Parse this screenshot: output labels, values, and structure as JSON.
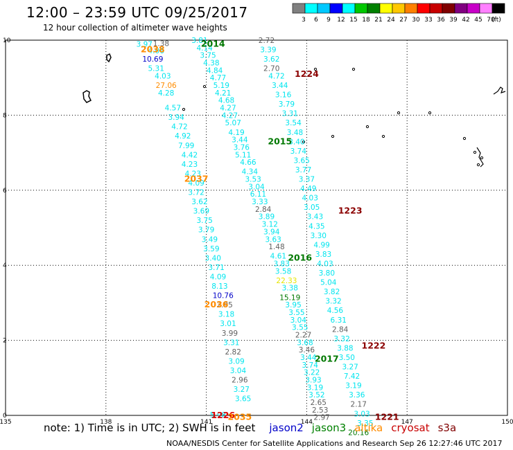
{
  "header": {
    "title": "12:00 – 23:59 UTC 09/25/2017",
    "subtitle": "12 hour collection of altimeter wave heights"
  },
  "legend": {
    "unit": "(ft)",
    "colors": [
      "#808080",
      "#00ffff",
      "#00c8ff",
      "#0000ff",
      "#00ffff",
      "#00c800",
      "#008000",
      "#ffff00",
      "#ffc800",
      "#ff8000",
      "#ff0000",
      "#c80000",
      "#800000",
      "#800080",
      "#c800c8",
      "#ff80ff",
      "#000000"
    ],
    "labels": [
      "3",
      "6",
      "9",
      "12",
      "15",
      "18",
      "21",
      "24",
      "27",
      "30",
      "33",
      "36",
      "39",
      "42",
      "45",
      "70"
    ]
  },
  "axes": {
    "x_ticks": [
      "135",
      "138",
      "141",
      "144",
      "147",
      "150"
    ],
    "y_ticks": [
      "10",
      "8",
      "6",
      "4",
      "2",
      "0"
    ],
    "lon_min": 135,
    "lon_max": 150,
    "lat_min": 0,
    "lat_max": 10
  },
  "footer": {
    "note": "note:  1) Time is in UTC;  2) SWH is in feet",
    "satellites": [
      {
        "name": "jason2",
        "color": "#0000c8"
      },
      {
        "name": "jason3",
        "color": "#008000"
      },
      {
        "name": "altika",
        "color": "#ff8c00"
      },
      {
        "name": "cryosat",
        "color": "#c80000"
      },
      {
        "name": "s3a",
        "color": "#800000"
      }
    ],
    "credit": "NOAA/NESDIS Center for Satellite Applications and Research    Sep 26 12:27:46 UTC 2017"
  },
  "colors": {
    "cyan": "#00e5ee",
    "gray": "#606060",
    "dkgreen": "#007800",
    "orange": "#ff8c00",
    "darkred": "#8b0000",
    "blue": "#0000c8",
    "yellow": "#e6e600",
    "red": "#dd0000"
  },
  "chart_data": {
    "type": "map",
    "pass_labels": [
      {
        "text": "2014",
        "lon": 141.2,
        "lat": 9.9,
        "c": "dkgreen"
      },
      {
        "text": "2038",
        "lon": 139.4,
        "lat": 9.75,
        "c": "orange"
      },
      {
        "text": "1224",
        "lon": 144.0,
        "lat": 9.1,
        "c": "darkred"
      },
      {
        "text": "2015",
        "lon": 143.2,
        "lat": 7.3,
        "c": "dkgreen"
      },
      {
        "text": "2037",
        "lon": 140.7,
        "lat": 6.3,
        "c": "orange"
      },
      {
        "text": "1223",
        "lon": 145.3,
        "lat": 5.45,
        "c": "darkred"
      },
      {
        "text": "2016",
        "lon": 143.8,
        "lat": 4.2,
        "c": "dkgreen"
      },
      {
        "text": "2036",
        "lon": 141.3,
        "lat": 2.95,
        "c": "orange"
      },
      {
        "text": "1222",
        "lon": 146.0,
        "lat": 1.85,
        "c": "darkred"
      },
      {
        "text": "2017",
        "lon": 144.6,
        "lat": 1.5,
        "c": "dkgreen"
      },
      {
        "text": "1226",
        "lon": 141.5,
        "lat": 0.0,
        "c": "red"
      },
      {
        "text": "2035",
        "lon": 142.0,
        "lat": -0.05,
        "c": "orange"
      },
      {
        "text": "1221",
        "lon": 146.4,
        "lat": -0.05,
        "c": "darkred"
      }
    ],
    "tracks": [
      {
        "name": "track-2038-2035",
        "points": [
          [
            "3.97",
            139.15,
            9.9,
            "cyan"
          ],
          [
            "1.38",
            139.65,
            9.92,
            "gray"
          ],
          [
            "4.06",
            139.5,
            9.72,
            "cyan"
          ],
          [
            "10.69",
            139.4,
            9.5,
            "blue"
          ],
          [
            "5.31",
            139.5,
            9.25,
            "cyan"
          ],
          [
            "4.03",
            139.7,
            9.05,
            "cyan"
          ],
          [
            "27.06",
            139.8,
            8.8,
            "orange"
          ],
          [
            "4.28",
            139.8,
            8.6,
            "cyan"
          ],
          [
            "4.57",
            140.0,
            8.2,
            "cyan"
          ],
          [
            "3.94",
            140.1,
            7.95,
            "cyan"
          ],
          [
            "4.72",
            140.2,
            7.7,
            "cyan"
          ],
          [
            "4.92",
            140.3,
            7.45,
            "cyan"
          ],
          [
            "7.99",
            140.4,
            7.2,
            "cyan"
          ],
          [
            "4.42",
            140.5,
            6.95,
            "cyan"
          ],
          [
            "4.23",
            140.5,
            6.7,
            "cyan"
          ],
          [
            "4.23",
            140.6,
            6.45,
            "cyan"
          ],
          [
            "4.09",
            140.7,
            6.2,
            "cyan"
          ],
          [
            "3.72",
            140.7,
            5.95,
            "cyan"
          ],
          [
            "3.62",
            140.8,
            5.7,
            "cyan"
          ],
          [
            "3.69",
            140.85,
            5.45,
            "cyan"
          ],
          [
            "3.75",
            140.95,
            5.2,
            "cyan"
          ],
          [
            "3.79",
            141.0,
            4.95,
            "cyan"
          ],
          [
            "3.49",
            141.1,
            4.7,
            "cyan"
          ],
          [
            "3.59",
            141.15,
            4.45,
            "cyan"
          ],
          [
            "3.40",
            141.2,
            4.2,
            "cyan"
          ],
          [
            "3.71",
            141.3,
            3.95,
            "cyan"
          ],
          [
            "4.09",
            141.35,
            3.7,
            "cyan"
          ],
          [
            "8.13",
            141.4,
            3.45,
            "cyan"
          ],
          [
            "10.76",
            141.5,
            3.2,
            "blue"
          ],
          [
            "2.95",
            141.55,
            2.95,
            "gray"
          ],
          [
            "3.18",
            141.6,
            2.7,
            "cyan"
          ],
          [
            "3.01",
            141.65,
            2.45,
            "cyan"
          ],
          [
            "3.99",
            141.7,
            2.2,
            "gray"
          ],
          [
            "3.31",
            141.75,
            1.95,
            "cyan"
          ],
          [
            "2.82",
            141.8,
            1.7,
            "gray"
          ],
          [
            "3.09",
            141.9,
            1.45,
            "cyan"
          ],
          [
            "3.04",
            141.95,
            1.2,
            "cyan"
          ],
          [
            "2.96",
            142.0,
            0.95,
            "gray"
          ],
          [
            "3.27",
            142.05,
            0.7,
            "cyan"
          ],
          [
            "3.65",
            142.1,
            0.45,
            "cyan"
          ],
          [
            "5.98",
            141.35,
            0.02,
            "cyan"
          ]
        ]
      },
      {
        "name": "track-2014-2017",
        "points": [
          [
            "3.81",
            140.8,
            10.0,
            "cyan"
          ],
          [
            "4.14",
            140.95,
            9.8,
            "cyan"
          ],
          [
            "3.75",
            141.05,
            9.6,
            "cyan"
          ],
          [
            "4.38",
            141.15,
            9.4,
            "cyan"
          ],
          [
            "4.84",
            141.25,
            9.2,
            "cyan"
          ],
          [
            "4.77",
            141.35,
            9.0,
            "cyan"
          ],
          [
            "5.19",
            141.45,
            8.8,
            "cyan"
          ],
          [
            "4.21",
            141.5,
            8.6,
            "cyan"
          ],
          [
            "4.68",
            141.6,
            8.4,
            "cyan"
          ],
          [
            "4.27",
            141.65,
            8.2,
            "cyan"
          ],
          [
            "4.27",
            141.7,
            8.0,
            "cyan"
          ],
          [
            "5.07",
            141.8,
            7.8,
            "cyan"
          ],
          [
            "4.19",
            141.9,
            7.55,
            "cyan"
          ],
          [
            "3.44",
            142.0,
            7.35,
            "cyan"
          ],
          [
            "3.76",
            142.05,
            7.15,
            "cyan"
          ],
          [
            "5.11",
            142.1,
            6.95,
            "cyan"
          ],
          [
            "4.66",
            142.25,
            6.75,
            "cyan"
          ],
          [
            "4.34",
            142.3,
            6.5,
            "cyan"
          ],
          [
            "3.53",
            142.4,
            6.3,
            "cyan"
          ],
          [
            "3.04",
            142.5,
            6.1,
            "cyan"
          ],
          [
            "6.11",
            142.55,
            5.9,
            "cyan"
          ],
          [
            "3.33",
            142.6,
            5.7,
            "cyan"
          ],
          [
            "2.84",
            142.7,
            5.5,
            "gray"
          ],
          [
            "3.89",
            142.8,
            5.3,
            "cyan"
          ],
          [
            "3.12",
            142.9,
            5.1,
            "cyan"
          ],
          [
            "3.94",
            142.95,
            4.9,
            "cyan"
          ],
          [
            "3.63",
            143.0,
            4.7,
            "cyan"
          ],
          [
            "1.48",
            143.1,
            4.5,
            "gray"
          ],
          [
            "4.61",
            143.15,
            4.25,
            "cyan"
          ],
          [
            "3.83",
            143.25,
            4.05,
            "cyan"
          ],
          [
            "3.58",
            143.3,
            3.85,
            "cyan"
          ],
          [
            "22.33",
            143.4,
            3.6,
            "yellow"
          ],
          [
            "3.38",
            143.5,
            3.4,
            "cyan"
          ],
          [
            "15.19",
            143.5,
            3.15,
            "dkgreen"
          ],
          [
            "3.95",
            143.6,
            2.95,
            "cyan"
          ],
          [
            "3.55",
            143.7,
            2.75,
            "cyan"
          ],
          [
            "3.04",
            143.75,
            2.55,
            "cyan"
          ],
          [
            "3.55",
            143.8,
            2.35,
            "cyan"
          ],
          [
            "2.27",
            143.9,
            2.15,
            "gray"
          ],
          [
            "3.68",
            143.95,
            1.95,
            "cyan"
          ],
          [
            "3.46",
            144.0,
            1.75,
            "gray"
          ],
          [
            "3.44",
            144.05,
            1.55,
            "cyan"
          ],
          [
            "3.74",
            144.1,
            1.35,
            "cyan"
          ],
          [
            "3.22",
            144.15,
            1.15,
            "cyan"
          ],
          [
            "3.93",
            144.2,
            0.95,
            "cyan"
          ],
          [
            "3.19",
            144.25,
            0.75,
            "cyan"
          ],
          [
            "3.52",
            144.3,
            0.55,
            "cyan"
          ],
          [
            "2.65",
            144.35,
            0.35,
            "gray"
          ],
          [
            "2.53",
            144.4,
            0.15,
            "gray"
          ],
          [
            "2.97",
            144.45,
            -0.05,
            "gray"
          ]
        ]
      },
      {
        "name": "track-1224-1221",
        "points": [
          [
            "2.72",
            142.8,
            10.0,
            "gray"
          ],
          [
            "3.39",
            142.85,
            9.75,
            "cyan"
          ],
          [
            "3.62",
            142.95,
            9.5,
            "cyan"
          ],
          [
            "2.70",
            142.95,
            9.25,
            "gray"
          ],
          [
            "4.72",
            143.1,
            9.05,
            "cyan"
          ],
          [
            "3.44",
            143.2,
            8.8,
            "cyan"
          ],
          [
            "3.16",
            143.3,
            8.55,
            "cyan"
          ],
          [
            "3.79",
            143.4,
            8.3,
            "cyan"
          ],
          [
            "3.31",
            143.5,
            8.05,
            "cyan"
          ],
          [
            "3.54",
            143.6,
            7.8,
            "cyan"
          ],
          [
            "3.48",
            143.65,
            7.55,
            "cyan"
          ],
          [
            "3.40",
            143.7,
            7.3,
            "cyan"
          ],
          [
            "3.74",
            143.75,
            7.05,
            "cyan"
          ],
          [
            "3.65",
            143.85,
            6.8,
            "cyan"
          ],
          [
            "3.77",
            143.9,
            6.55,
            "cyan"
          ],
          [
            "3.37",
            144.0,
            6.3,
            "cyan"
          ],
          [
            "4.49",
            144.05,
            6.05,
            "cyan"
          ],
          [
            "4.03",
            144.1,
            5.8,
            "cyan"
          ],
          [
            "3.05",
            144.15,
            5.55,
            "cyan"
          ],
          [
            "3.43",
            144.25,
            5.3,
            "cyan"
          ],
          [
            "4.35",
            144.3,
            5.05,
            "cyan"
          ],
          [
            "3.30",
            144.35,
            4.8,
            "cyan"
          ],
          [
            "4.99",
            144.45,
            4.55,
            "cyan"
          ],
          [
            "3.83",
            144.5,
            4.3,
            "cyan"
          ],
          [
            "4.03",
            144.55,
            4.05,
            "cyan"
          ],
          [
            "3.80",
            144.6,
            3.8,
            "cyan"
          ],
          [
            "5.04",
            144.65,
            3.55,
            "cyan"
          ],
          [
            "3.82",
            144.75,
            3.3,
            "cyan"
          ],
          [
            "3.32",
            144.8,
            3.05,
            "cyan"
          ],
          [
            "4.56",
            144.85,
            2.8,
            "cyan"
          ],
          [
            "6.31",
            144.95,
            2.55,
            "cyan"
          ],
          [
            "2.84",
            145.0,
            2.3,
            "gray"
          ],
          [
            "3.32",
            145.05,
            2.05,
            "cyan"
          ],
          [
            "3.88",
            145.15,
            1.8,
            "cyan"
          ],
          [
            "3.50",
            145.2,
            1.55,
            "cyan"
          ],
          [
            "3.27",
            145.3,
            1.3,
            "cyan"
          ],
          [
            "7.42",
            145.35,
            1.05,
            "cyan"
          ],
          [
            "3.19",
            145.4,
            0.8,
            "cyan"
          ],
          [
            "3.36",
            145.5,
            0.55,
            "cyan"
          ],
          [
            "2.17",
            145.55,
            0.3,
            "gray"
          ],
          [
            "3.03",
            145.65,
            0.05,
            "cyan"
          ],
          [
            "3.35",
            145.75,
            -0.2,
            "cyan"
          ],
          [
            "20.16",
            145.55,
            -0.45,
            "dkgreen"
          ]
        ]
      }
    ]
  }
}
